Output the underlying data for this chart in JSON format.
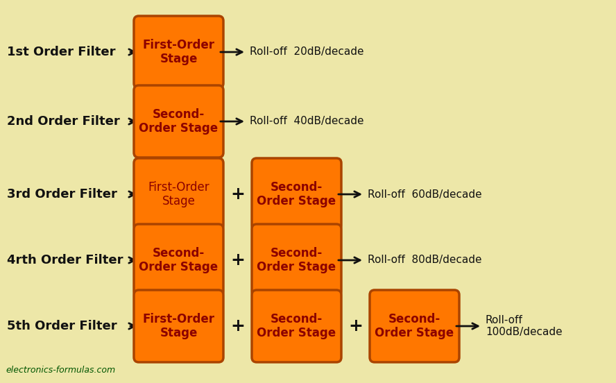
{
  "background_color": "#EDE7A8",
  "box_fill_color": "#FF7700",
  "box_edge_color": "#AA4400",
  "box_text_color": "#8B0000",
  "label_text_color": "#111111",
  "arrow_color": "#111111",
  "watermark_color": "#005500",
  "rows": [
    {
      "label": "1st Order Filter",
      "boxes": [
        {
          "text": "First-Order\nStage",
          "bold": true
        }
      ],
      "rolloff": "Roll-off  20dB/decade",
      "rolloff_lines": 1
    },
    {
      "label": "2nd Order Filter",
      "boxes": [
        {
          "text": "Second-\nOrder Stage",
          "bold": true
        }
      ],
      "rolloff": "Roll-off  40dB/decade",
      "rolloff_lines": 1
    },
    {
      "label": "3rd Order Filter",
      "boxes": [
        {
          "text": "First-Order\nStage",
          "bold": false
        },
        {
          "text": "Second-\nOrder Stage",
          "bold": true
        }
      ],
      "rolloff": "Roll-off  60dB/decade",
      "rolloff_lines": 1
    },
    {
      "label": "4rth Order Filter",
      "boxes": [
        {
          "text": "Second-\nOrder Stage",
          "bold": true
        },
        {
          "text": "Second-\nOrder Stage",
          "bold": true
        }
      ],
      "rolloff": "Roll-off  80dB/decade",
      "rolloff_lines": 1
    },
    {
      "label": "5th Order Filter",
      "boxes": [
        {
          "text": "First-Order\nStage",
          "bold": true
        },
        {
          "text": "Second-\nOrder Stage",
          "bold": true
        },
        {
          "text": "Second-\nOrder Stage",
          "bold": true
        }
      ],
      "rolloff": "Roll-off\n100dB/decade",
      "rolloff_lines": 2
    }
  ],
  "watermark": "electronics-formulas.com",
  "fig_width": 8.88,
  "fig_height": 5.52,
  "dpi": 100
}
